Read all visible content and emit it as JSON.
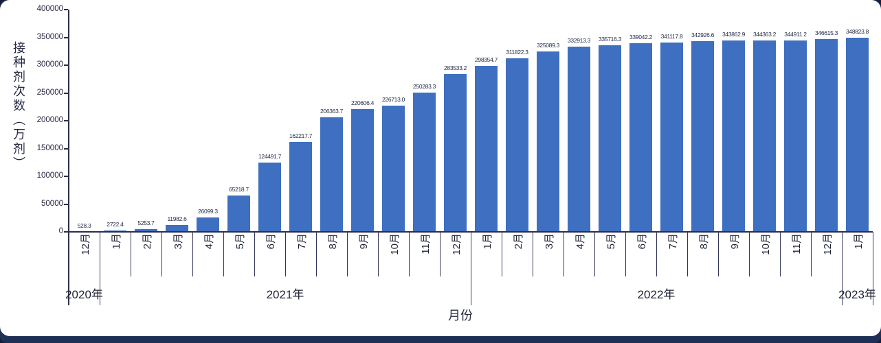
{
  "page": {
    "background_color": "#1f3056",
    "card_color": "#ffffff"
  },
  "chart_data": {
    "type": "bar",
    "title": "",
    "ylabel": "接种剂次数（万剂）",
    "xlabel": "月份",
    "ylim": [
      0,
      400000
    ],
    "ytick_step": 50000,
    "ytick_labels": [
      "0",
      "50000",
      "100000",
      "150000",
      "200000",
      "250000",
      "300000",
      "350000",
      "400000"
    ],
    "grid": "off",
    "legend": "none",
    "bar_color": "#3e6fc1",
    "categories": [
      "12月",
      "1月",
      "2月",
      "3月",
      "4月",
      "5月",
      "6月",
      "7月",
      "8月",
      "9月",
      "10月",
      "11月",
      "12月",
      "1月",
      "2月",
      "3月",
      "4月",
      "5月",
      "6月",
      "7月",
      "8月",
      "9月",
      "10月",
      "11月",
      "12月",
      "1月"
    ],
    "year_groups": [
      {
        "label": "2020年",
        "months": 1
      },
      {
        "label": "2021年",
        "months": 12
      },
      {
        "label": "2022年",
        "months": 12
      },
      {
        "label": "2023年",
        "months": 1
      }
    ],
    "values": [
      528.3,
      2722.4,
      5253.7,
      11982.6,
      26099.3,
      65218.7,
      124491.7,
      162217.7,
      206363.7,
      220606.4,
      226713.0,
      250283.3,
      283533.2,
      298354.7,
      311822.3,
      325089.3,
      332913.3,
      335716.3,
      339042.2,
      341117.8,
      342926.6,
      343862.9,
      344363.2,
      344911.2,
      346615.3,
      348823.8
    ]
  }
}
